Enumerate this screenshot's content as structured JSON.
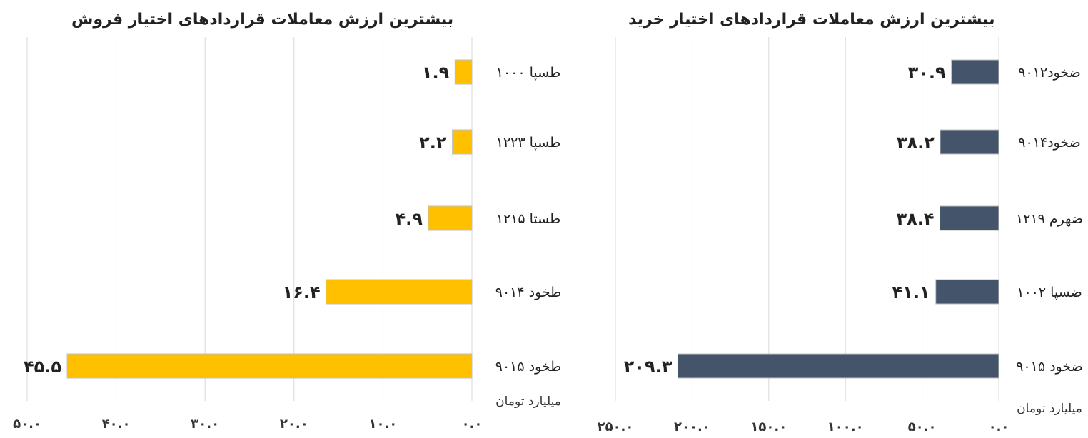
{
  "chart_data": [
    {
      "type": "bar",
      "orientation": "horizontal",
      "title": "بیشترین ارزش معاملات قراردادهای اختیار فروش",
      "unit_label": "میلیارد تومان",
      "categories": [
        "طسپا ۱۰۰۰",
        "طسپا ۱۲۲۳",
        "طستا ۱۲۱۵",
        "طخود ۹۰۱۴",
        "طخود ۹۰۱۵"
      ],
      "values": [
        1.9,
        2.2,
        4.9,
        16.4,
        45.5
      ],
      "value_labels": [
        "۱.۹",
        "۲.۲",
        "۴.۹",
        "۱۶.۴",
        "۴۵.۵"
      ],
      "xlim": [
        0,
        50
      ],
      "tick_values": [
        0,
        10,
        20,
        30,
        40,
        50
      ],
      "tick_labels": [
        "۰.۰",
        "۱۰.۰",
        "۲۰.۰",
        "۳۰.۰",
        "۴۰.۰",
        "۵۰.۰"
      ],
      "bar_color": "#FFC000",
      "grid": true,
      "axis_direction": "right-to-left"
    },
    {
      "type": "bar",
      "orientation": "horizontal",
      "title": "بیشترین ارزش معاملات قراردادهای اختیار خرید",
      "unit_label": "میلیارد تومان",
      "categories": [
        "ضخود۹۰۱۲",
        "ضخود۹۰۱۴",
        "ضهرم ۱۲۱۹",
        "ضسپا ۱۰۰۲",
        "ضخود ۹۰۱۵"
      ],
      "values": [
        30.9,
        38.2,
        38.4,
        41.1,
        209.3
      ],
      "value_labels": [
        "۳۰.۹",
        "۳۸.۲",
        "۳۸.۴",
        "۴۱.۱",
        "۲۰۹.۳"
      ],
      "xlim": [
        0,
        250
      ],
      "tick_values": [
        0,
        50,
        100,
        150,
        200,
        250
      ],
      "tick_labels": [
        "۰.۰",
        "۵۰.۰",
        "۱۰۰.۰",
        "۱۵۰.۰",
        "۲۰۰.۰",
        "۲۵۰.۰"
      ],
      "bar_color": "#44546A",
      "grid": true,
      "axis_direction": "right-to-left"
    }
  ]
}
